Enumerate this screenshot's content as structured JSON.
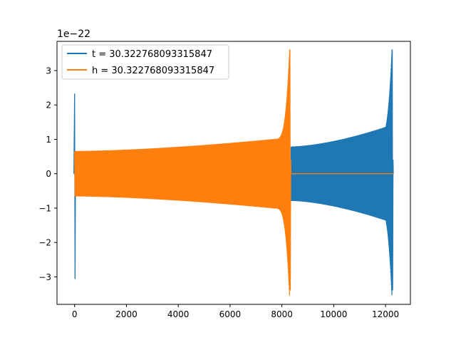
{
  "chart_data": {
    "type": "line",
    "title": "",
    "xlabel": "",
    "ylabel": "",
    "y_offset_label": "1e−22",
    "xlim": [
      -680,
      12960
    ],
    "ylim": [
      -3.8,
      3.85
    ],
    "xticks": [
      0,
      2000,
      4000,
      6000,
      8000,
      10000,
      12000
    ],
    "xtick_labels": [
      "0",
      "2000",
      "4000",
      "6000",
      "8000",
      "10000",
      "12000"
    ],
    "yticks": [
      -3,
      -2,
      -1,
      0,
      1,
      2,
      3
    ],
    "ytick_labels": [
      "−3",
      "−2",
      "−1",
      "0",
      "1",
      "2",
      "3"
    ],
    "grid": false,
    "legend_position": "top-left",
    "series": [
      {
        "name": "t = 30.322768093315847",
        "color": "#1f77b4",
        "segments": [
          {
            "kind": "spike",
            "x": 0,
            "top": 2.32,
            "bottom": -3.05
          },
          {
            "kind": "oscillation",
            "x_start": 8350,
            "x_end": 12200,
            "amp_start": 0.78,
            "amp_end": 1.4,
            "cycles": 130
          },
          {
            "kind": "chirp",
            "x_start": 11650,
            "x_end": 12300,
            "peak": 3.6,
            "trough": -3.38,
            "merger_x": 12250
          }
        ]
      },
      {
        "name": "h = 30.322768093315847",
        "color": "#ff7f0e",
        "segments": [
          {
            "kind": "oscillation",
            "x_start": 0,
            "x_end": 7700,
            "amp_start": 0.65,
            "amp_end": 1.0,
            "cycles": 220
          },
          {
            "kind": "chirp",
            "x_start": 7700,
            "x_end": 8350,
            "peak": 3.6,
            "trough": -3.38,
            "merger_x": 8300
          },
          {
            "kind": "flat",
            "x_start": 8350,
            "x_end": 12300,
            "value": 0
          }
        ]
      }
    ]
  }
}
